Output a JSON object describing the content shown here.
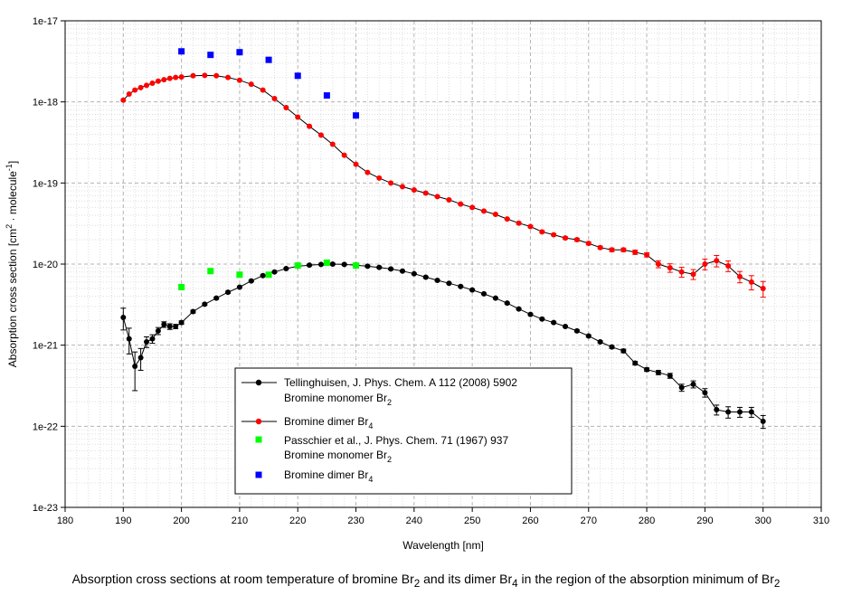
{
  "chart_data": {
    "type": "scatter",
    "xlabel": "Wavelength [nm]",
    "ylabel_parts": {
      "pre": "Absorption cross section [cm",
      "sup1": "2",
      "mid": " · molecule",
      "sup2": "-1",
      "post": "]"
    },
    "xlim": [
      180,
      310
    ],
    "ylim": [
      1e-23,
      1e-17
    ],
    "yscale": "log",
    "x_ticks": [
      "180",
      "190",
      "200",
      "210",
      "220",
      "230",
      "240",
      "250",
      "260",
      "270",
      "280",
      "290",
      "300",
      "310"
    ],
    "y_ticks": [
      {
        "label": "1e-23",
        "value": 1e-23
      },
      {
        "label": "1e-22",
        "value": 1e-22
      },
      {
        "label": "1e-21",
        "value": 1e-21
      },
      {
        "label": "1e-20",
        "value": 1e-20
      },
      {
        "label": "1e-19",
        "value": 1e-19
      },
      {
        "label": "1e-18",
        "value": 1e-18
      },
      {
        "label": "1e-17",
        "value": 1e-17
      }
    ],
    "grid": true,
    "legend_position": "bottom-center",
    "series": [
      {
        "name": "Tellinghuisen monomer Br2",
        "marker": "circle",
        "color": "#000000",
        "line": true,
        "error_bars": true,
        "x": [
          190,
          191,
          192,
          193,
          194,
          195,
          196,
          197,
          198,
          199,
          200,
          202,
          204,
          206,
          208,
          210,
          212,
          214,
          216,
          218,
          220,
          222,
          224,
          226,
          228,
          230,
          232,
          234,
          236,
          238,
          240,
          242,
          244,
          246,
          248,
          250,
          252,
          254,
          256,
          258,
          260,
          262,
          264,
          266,
          268,
          270,
          272,
          274,
          276,
          278,
          280,
          282,
          284,
          286,
          288,
          290,
          292,
          294,
          296,
          298,
          300
        ],
        "y": [
          2.2e-21,
          1.2e-21,
          5.5e-22,
          7e-22,
          1.1e-21,
          1.2e-21,
          1.5e-21,
          1.8e-21,
          1.7e-21,
          1.7e-21,
          1.9e-21,
          2.6e-21,
          3.2e-21,
          3.8e-21,
          4.5e-21,
          5.2e-21,
          6.2e-21,
          7.2e-21,
          8e-21,
          8.8e-21,
          9.4e-21,
          9.7e-21,
          9.9e-21,
          1e-20,
          9.9e-21,
          9.7e-21,
          9.4e-21,
          9.1e-21,
          8.7e-21,
          8.2e-21,
          7.6e-21,
          6.9e-21,
          6.3e-21,
          5.8e-21,
          5.3e-21,
          4.8e-21,
          4.3e-21,
          3.8e-21,
          3.3e-21,
          2.8e-21,
          2.4e-21,
          2.1e-21,
          1.9e-21,
          1.7e-21,
          1.5e-21,
          1.3e-21,
          1.1e-21,
          9.5e-22,
          8.5e-22,
          6e-22,
          5e-22,
          4.6e-22,
          4.2e-22,
          3e-22,
          3.3e-22,
          2.6e-22,
          1.6e-22,
          1.5e-22,
          1.5e-22,
          1.5e-22,
          1.15e-22
        ],
        "err": [
          0.3,
          0.35,
          0.5,
          0.3,
          0.15,
          0.12,
          0.1,
          0.08,
          0.08,
          0.06,
          0.05,
          0.04,
          0.03,
          0.03,
          0.03,
          0.02,
          0.02,
          0.02,
          0.02,
          0.02,
          0.02,
          0.02,
          0.02,
          0.02,
          0.02,
          0.02,
          0.02,
          0.02,
          0.02,
          0.02,
          0.02,
          0.02,
          0.02,
          0.02,
          0.02,
          0.02,
          0.02,
          0.02,
          0.02,
          0.02,
          0.02,
          0.02,
          0.02,
          0.02,
          0.03,
          0.03,
          0.03,
          0.04,
          0.05,
          0.05,
          0.05,
          0.06,
          0.07,
          0.1,
          0.1,
          0.12,
          0.14,
          0.16,
          0.14,
          0.14,
          0.18
        ]
      },
      {
        "name": "Tellinghuisen dimer Br4",
        "marker": "circle",
        "color": "#ff0000",
        "line": true,
        "error_bars": true,
        "x": [
          190,
          191,
          192,
          193,
          194,
          195,
          196,
          197,
          198,
          199,
          200,
          202,
          204,
          206,
          208,
          210,
          212,
          214,
          216,
          218,
          220,
          222,
          224,
          226,
          228,
          230,
          232,
          234,
          236,
          238,
          240,
          242,
          244,
          246,
          248,
          250,
          252,
          254,
          256,
          258,
          260,
          262,
          264,
          266,
          268,
          270,
          272,
          274,
          276,
          278,
          280,
          282,
          284,
          286,
          288,
          290,
          292,
          294,
          296,
          298,
          300
        ],
        "y": [
          1.05e-18,
          1.25e-18,
          1.4e-18,
          1.5e-18,
          1.6e-18,
          1.7e-18,
          1.8e-18,
          1.88e-18,
          1.95e-18,
          2e-18,
          2.03e-18,
          2.1e-18,
          2.12e-18,
          2.1e-18,
          2e-18,
          1.85e-18,
          1.65e-18,
          1.4e-18,
          1.1e-18,
          8.5e-19,
          6.5e-19,
          5e-19,
          3.9e-19,
          3e-19,
          2.2e-19,
          1.7e-19,
          1.35e-19,
          1.15e-19,
          1e-19,
          9e-20,
          8.2e-20,
          7.5e-20,
          6.8e-20,
          6.2e-20,
          5.5e-20,
          5e-20,
          4.5e-20,
          4.1e-20,
          3.6e-20,
          3.2e-20,
          2.9e-20,
          2.5e-20,
          2.3e-20,
          2.1e-20,
          2e-20,
          1.8e-20,
          1.6e-20,
          1.5e-20,
          1.5e-20,
          1.4e-20,
          1.3e-20,
          1e-20,
          9e-21,
          8e-21,
          7.5e-21,
          1e-20,
          1.1e-20,
          9.5e-21,
          7e-21,
          6e-21,
          5e-21
        ],
        "err": [
          0.01,
          0.01,
          0.01,
          0.01,
          0.01,
          0.01,
          0.01,
          0.01,
          0.01,
          0.01,
          0.01,
          0.01,
          0.01,
          0.01,
          0.01,
          0.01,
          0.01,
          0.01,
          0.01,
          0.01,
          0.01,
          0.01,
          0.01,
          0.01,
          0.01,
          0.01,
          0.01,
          0.01,
          0.01,
          0.01,
          0.02,
          0.02,
          0.02,
          0.02,
          0.02,
          0.02,
          0.02,
          0.02,
          0.02,
          0.03,
          0.03,
          0.03,
          0.03,
          0.03,
          0.04,
          0.04,
          0.04,
          0.05,
          0.05,
          0.06,
          0.06,
          0.1,
          0.12,
          0.14,
          0.14,
          0.15,
          0.16,
          0.15,
          0.16,
          0.2,
          0.22
        ]
      },
      {
        "name": "Passchier monomer Br2",
        "marker": "square",
        "color": "#00ff00",
        "line": false,
        "error_bars": false,
        "x": [
          200,
          205,
          210,
          215,
          220,
          225,
          230
        ],
        "y": [
          5.2e-21,
          8.2e-21,
          7.4e-21,
          7.4e-21,
          9.6e-21,
          1.04e-20,
          9.6e-21
        ]
      },
      {
        "name": "Passchier dimer Br4",
        "marker": "square",
        "color": "#0000ff",
        "line": false,
        "error_bars": false,
        "x": [
          200,
          205,
          210,
          215,
          220,
          225,
          230
        ],
        "y": [
          4.2e-18,
          3.8e-18,
          4.1e-18,
          3.3e-18,
          2.1e-18,
          1.2e-18,
          6.8e-19
        ]
      }
    ]
  },
  "legend": {
    "tell_ref": "Tellinghuisen, J. Phys. Chem. A 112 (2008) 5902",
    "monomer_pre": "Bromine monomer Br",
    "monomer_sub": "2",
    "dimer_pre": "Bromine dimer Br",
    "dimer_sub": "4",
    "pass_ref": "Passchier et al., J. Phys. Chem. 71 (1967) 937"
  },
  "caption": {
    "pre": "Absorption cross sections at room temperature of bromine Br",
    "sub1": "2",
    "mid": " and its dimer Br",
    "sub2": "4",
    "post": " in the region of the absorption minimum of Br",
    "sub3": "2"
  }
}
